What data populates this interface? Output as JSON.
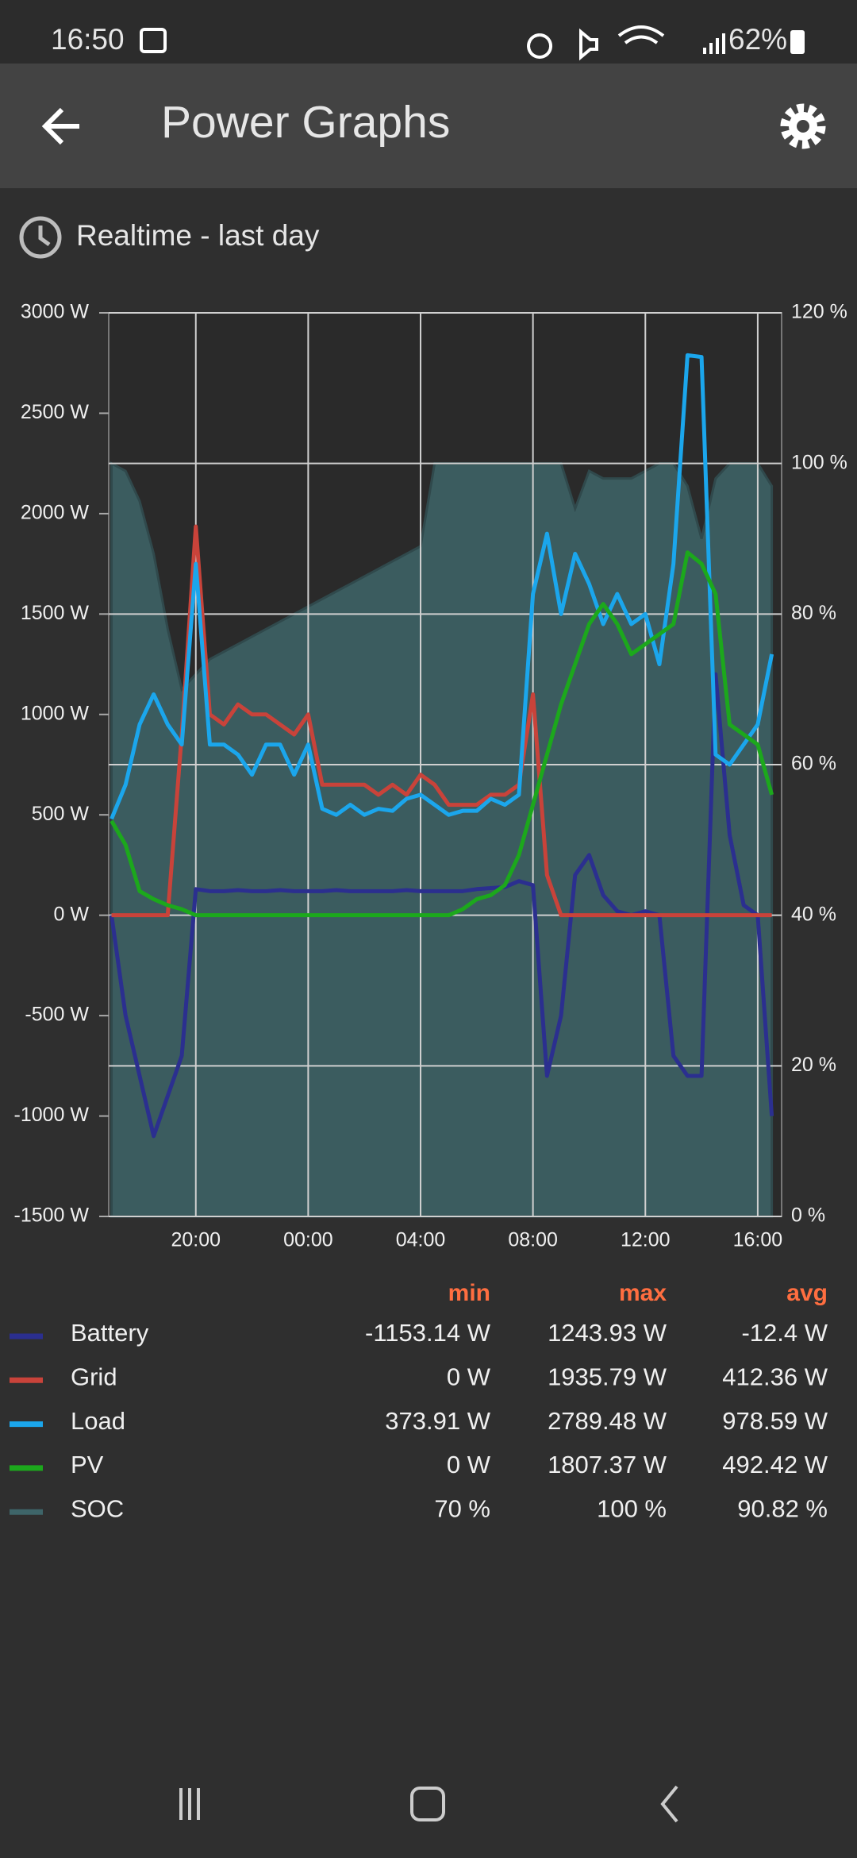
{
  "status_bar": {
    "time": "16:50",
    "battery": "62%"
  },
  "app_bar": {
    "title": "Power Graphs"
  },
  "range_label": "Realtime - last day",
  "chart_data": {
    "type": "line",
    "x": [
      17,
      17.5,
      18,
      18.5,
      19,
      19.5,
      20,
      20.5,
      21,
      21.5,
      22,
      22.5,
      23,
      23.5,
      24,
      24.5,
      25,
      25.5,
      26,
      26.5,
      27,
      27.5,
      28,
      28.5,
      29,
      29.5,
      30,
      30.5,
      31,
      31.5,
      32,
      32.5,
      33,
      33.5,
      34,
      34.5,
      35,
      35.5,
      36,
      36.5,
      37,
      37.5,
      38,
      38.5,
      39,
      39.5,
      40,
      40.5
    ],
    "xlim": [
      16.9,
      40.85
    ],
    "xticks": [
      {
        "value": 20,
        "label": "20:00"
      },
      {
        "value": 24,
        "label": "00:00"
      },
      {
        "value": 28,
        "label": "04:00"
      },
      {
        "value": 32,
        "label": "08:00"
      },
      {
        "value": 36,
        "label": "12:00"
      },
      {
        "value": 40,
        "label": "16:00"
      }
    ],
    "ylim": [
      -1500,
      3000
    ],
    "yticks": [
      {
        "value": -1500,
        "label": "-1500 W"
      },
      {
        "value": -1000,
        "label": "-1000 W"
      },
      {
        "value": -500,
        "label": "-500 W"
      },
      {
        "value": 0,
        "label": "0 W"
      },
      {
        "value": 500,
        "label": "500 W"
      },
      {
        "value": 1000,
        "label": "1000 W"
      },
      {
        "value": 1500,
        "label": "1500 W"
      },
      {
        "value": 2000,
        "label": "2000 W"
      },
      {
        "value": 2500,
        "label": "2500 W"
      },
      {
        "value": 3000,
        "label": "3000 W"
      }
    ],
    "y2lim": [
      0,
      120
    ],
    "y2ticks": [
      {
        "value": 0,
        "label": "0 %"
      },
      {
        "value": 20,
        "label": "20 %"
      },
      {
        "value": 40,
        "label": "40 %"
      },
      {
        "value": 60,
        "label": "60 %"
      },
      {
        "value": 80,
        "label": "80 %"
      },
      {
        "value": 100,
        "label": "100 %"
      },
      {
        "value": 120,
        "label": "120 %"
      }
    ],
    "grid": true,
    "series": [
      {
        "name": "Battery",
        "color": "#2b2f8f",
        "values": [
          0,
          -500,
          -800,
          -1100,
          -900,
          -700,
          130,
          120,
          120,
          125,
          120,
          120,
          125,
          120,
          120,
          120,
          125,
          120,
          120,
          120,
          120,
          125,
          120,
          120,
          120,
          120,
          130,
          135,
          140,
          170,
          150,
          -800,
          -500,
          200,
          300,
          100,
          20,
          0,
          20,
          0,
          -700,
          -800,
          -800,
          1200,
          400,
          50,
          0,
          -1000
        ]
      },
      {
        "name": "Grid",
        "color": "#c9433a",
        "values": [
          0,
          0,
          0,
          0,
          0,
          900,
          1936,
          1000,
          950,
          1050,
          1000,
          1000,
          950,
          900,
          1000,
          650,
          650,
          650,
          650,
          600,
          650,
          600,
          700,
          650,
          550,
          550,
          550,
          600,
          600,
          650,
          1100,
          200,
          0,
          0,
          0,
          0,
          0,
          0,
          0,
          0,
          0,
          0,
          0,
          0,
          0,
          0,
          0,
          0
        ]
      },
      {
        "name": "Load",
        "color": "#1ba6ec",
        "values": [
          480,
          650,
          950,
          1100,
          950,
          850,
          1750,
          850,
          850,
          800,
          700,
          850,
          850,
          700,
          850,
          530,
          500,
          550,
          500,
          530,
          520,
          580,
          600,
          550,
          500,
          520,
          520,
          580,
          550,
          600,
          1600,
          1900,
          1500,
          1800,
          1650,
          1450,
          1600,
          1450,
          1500,
          1250,
          1750,
          2789,
          2780,
          800,
          750,
          850,
          950,
          1300
        ]
      },
      {
        "name": "PV",
        "color": "#1ca81c",
        "values": [
          470,
          350,
          120,
          80,
          50,
          30,
          0,
          0,
          0,
          0,
          0,
          0,
          0,
          0,
          0,
          0,
          0,
          0,
          0,
          0,
          0,
          0,
          0,
          0,
          0,
          30,
          80,
          100,
          150,
          300,
          550,
          800,
          1050,
          1250,
          1450,
          1550,
          1450,
          1300,
          1350,
          1400,
          1450,
          1807,
          1750,
          1600,
          950,
          900,
          850,
          600
        ]
      },
      {
        "name": "SOC",
        "color": "#3e6569",
        "axis": "y2",
        "style": "area",
        "values": [
          100,
          99,
          95,
          88,
          78,
          70,
          72,
          74,
          75,
          76,
          77,
          78,
          79,
          80,
          81,
          82,
          83,
          84,
          85,
          86,
          87,
          88,
          89,
          100,
          100,
          100,
          100,
          100,
          100,
          100,
          100,
          100,
          100,
          94,
          99,
          98,
          98,
          98,
          99,
          100,
          100,
          97,
          90,
          98,
          100,
          100,
          100,
          97
        ]
      }
    ]
  },
  "legend_table": {
    "headers": [
      "min",
      "max",
      "avg"
    ],
    "rows": [
      [
        "-1153.14 W",
        "1243.93 W",
        "-12.4 W"
      ],
      [
        "0 W",
        "1935.79 W",
        "412.36 W"
      ],
      [
        "373.91 W",
        "2789.48 W",
        "978.59 W"
      ],
      [
        "0 W",
        "1807.37 W",
        "492.42 W"
      ],
      [
        "70 %",
        "100 %",
        "90.82 %"
      ]
    ]
  }
}
